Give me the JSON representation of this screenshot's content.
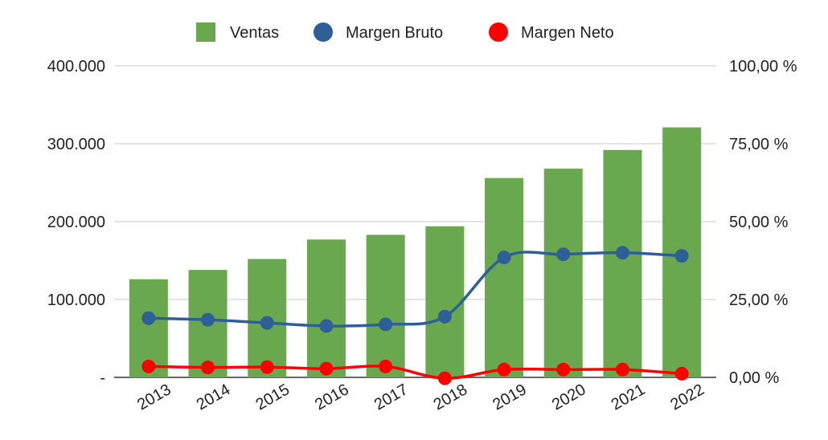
{
  "chart_data": {
    "type": "bar",
    "categories": [
      "2013",
      "2014",
      "2015",
      "2016",
      "2017",
      "2018",
      "2019",
      "2020",
      "2021",
      "2022"
    ],
    "series": [
      {
        "name": "Ventas",
        "kind": "bar",
        "axis": "left",
        "color": "#6aa84f",
        "values": [
          126000,
          138000,
          152000,
          177000,
          183000,
          194000,
          256000,
          268000,
          292000,
          321000
        ]
      },
      {
        "name": "Margen Bruto",
        "kind": "line",
        "axis": "right",
        "color": "#2f5f97",
        "values": [
          19.0,
          18.5,
          17.5,
          16.5,
          17.0,
          19.5,
          38.5,
          39.5,
          40.0,
          39.0
        ]
      },
      {
        "name": "Margen Neto",
        "kind": "line",
        "axis": "right",
        "color": "#ff0000",
        "values": [
          3.5,
          3.2,
          3.3,
          2.8,
          3.5,
          -0.3,
          2.5,
          2.5,
          2.5,
          1.2
        ]
      }
    ],
    "y_left": {
      "ylim": [
        0,
        400000
      ],
      "ticks": [
        "-",
        "100.000",
        "200.000",
        "300.000",
        "400.000"
      ]
    },
    "y_right": {
      "ylim": [
        0,
        100
      ],
      "ticks": [
        "0,00 %",
        "25,00 %",
        "50,00 %",
        "75,00 %",
        "100,00 %"
      ]
    },
    "legend_position": "top-center",
    "grid": true
  }
}
